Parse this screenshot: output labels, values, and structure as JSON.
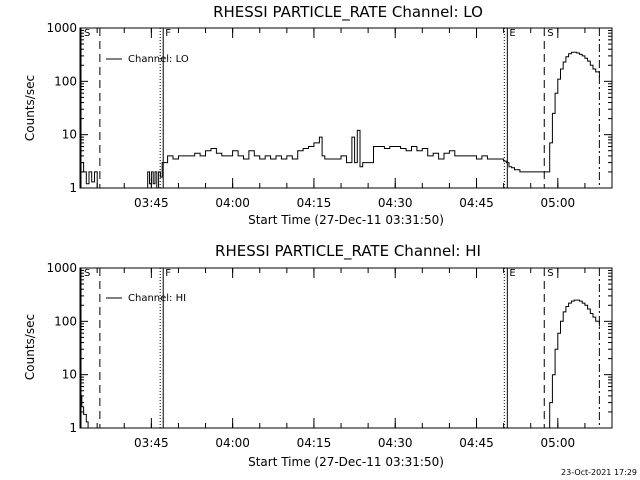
{
  "colors": {
    "background": "#ffffff",
    "ink": "#000000"
  },
  "footer_timestamp": "23-Oct-2021 17:29",
  "chart_data": [
    {
      "type": "line",
      "title": "RHESSI PARTICLE_RATE Channel: LO",
      "xlabel": "Start Time (27-Dec-11 03:31:50)",
      "ylabel": "Counts/sec",
      "y_scale": "log",
      "ylim": [
        1,
        1000
      ],
      "xlim": [
        "03:31:50",
        "05:10:00"
      ],
      "x_ticks": [
        "03:45",
        "04:00",
        "04:15",
        "04:30",
        "04:45",
        "05:00"
      ],
      "y_ticks": [
        "1",
        "10",
        "100",
        "1000"
      ],
      "legend": {
        "label": "Channel: LO",
        "position": "top-left"
      },
      "markers": [
        {
          "label": "S",
          "time": "03:31:50",
          "style": "solid"
        },
        {
          "label": "",
          "time": "03:35:30",
          "style": "dashed"
        },
        {
          "label": "F",
          "time": "03:47:00",
          "style": "dotted-solid"
        },
        {
          "label": "E",
          "time": "04:50:30",
          "style": "dotted-solid"
        },
        {
          "label": "S",
          "time": "04:57:30",
          "style": "dashed"
        },
        {
          "label": "",
          "time": "05:07:40",
          "style": "dash-dot"
        }
      ],
      "series": [
        {
          "x": [
            "03:31:50",
            "03:32:00",
            "03:32:30",
            "03:33:00",
            "03:33:30",
            "03:34:00",
            "03:34:30",
            "03:35:00",
            "03:35:30",
            "03:36:00",
            "03:44:00",
            "03:44:20",
            "03:44:40",
            "03:45:00",
            "03:45:20",
            "03:45:40",
            "03:46:00",
            "03:46:20",
            "03:46:40",
            "03:47:00",
            "03:47:30",
            "03:48:00",
            "03:49:00",
            "03:50:00",
            "03:51:00",
            "03:52:00",
            "03:53:00",
            "03:54:00",
            "03:55:00",
            "03:56:00",
            "03:57:00",
            "03:58:00",
            "03:59:00",
            "04:00:00",
            "04:01:00",
            "04:02:00",
            "04:03:00",
            "04:04:00",
            "04:05:00",
            "04:06:00",
            "04:07:00",
            "04:08:00",
            "04:09:00",
            "04:10:00",
            "04:11:00",
            "04:12:00",
            "04:13:00",
            "04:14:00",
            "04:15:00",
            "04:16:00",
            "04:16:30",
            "04:17:00",
            "04:18:00",
            "04:19:00",
            "04:20:00",
            "04:21:00",
            "04:22:00",
            "04:22:30",
            "04:23:00",
            "04:23:30",
            "04:24:00",
            "04:25:00",
            "04:26:00",
            "04:27:00",
            "04:28:00",
            "04:29:00",
            "04:30:00",
            "04:31:00",
            "04:32:00",
            "04:33:00",
            "04:34:00",
            "04:35:00",
            "04:36:00",
            "04:37:00",
            "04:38:00",
            "04:39:00",
            "04:40:00",
            "04:41:00",
            "04:42:00",
            "04:43:00",
            "04:44:00",
            "04:45:00",
            "04:46:00",
            "04:47:00",
            "04:48:00",
            "04:49:00",
            "04:50:00",
            "04:50:30",
            "04:51:00",
            "04:51:30",
            "04:52:00",
            "04:53:00",
            "04:54:00",
            "04:55:00",
            "04:56:00",
            "04:57:00",
            "04:57:30",
            "04:58:30",
            "04:59:00",
            "04:59:30",
            "05:00:00",
            "05:00:30",
            "05:01:00",
            "05:01:30",
            "05:02:00",
            "05:02:30",
            "05:03:00",
            "05:03:30",
            "05:04:00",
            "05:04:30",
            "05:05:00",
            "05:05:30",
            "05:06:00",
            "05:06:30",
            "05:07:00",
            "05:07:40"
          ],
          "y": [
            4,
            3,
            2,
            1.2,
            2,
            1.3,
            2,
            1,
            1,
            1,
            1,
            2,
            1.2,
            2,
            1.2,
            2,
            1,
            2,
            1.6,
            3,
            3,
            4,
            3.5,
            4,
            4,
            4,
            4.5,
            4,
            5,
            5.5,
            4.5,
            4,
            4,
            5,
            4,
            3.5,
            5,
            4,
            3.5,
            4,
            3.5,
            4,
            3.5,
            4,
            3.5,
            5,
            5.5,
            6,
            7,
            9,
            4,
            3.5,
            3.5,
            3.5,
            4,
            3,
            9,
            3,
            12,
            2.5,
            3,
            3,
            6,
            6,
            5.5,
            6,
            6,
            5.5,
            5,
            6,
            5,
            5.5,
            4,
            4.5,
            3.5,
            4.5,
            5,
            4,
            4,
            4,
            4,
            3.5,
            4,
            3.5,
            3.5,
            3.5,
            3.2,
            3,
            2.5,
            2.4,
            2.2,
            2,
            2,
            2,
            2,
            2,
            2,
            7,
            25,
            60,
            110,
            170,
            230,
            290,
            330,
            350,
            350,
            340,
            320,
            300,
            270,
            240,
            200,
            170,
            150,
            120
          ]
        }
      ]
    },
    {
      "type": "line",
      "title": "RHESSI PARTICLE_RATE Channel: HI",
      "xlabel": "Start Time (27-Dec-11 03:31:50)",
      "ylabel": "Counts/sec",
      "y_scale": "log",
      "ylim": [
        1,
        1000
      ],
      "xlim": [
        "03:31:50",
        "05:10:00"
      ],
      "x_ticks": [
        "03:45",
        "04:00",
        "04:15",
        "04:30",
        "04:45",
        "05:00"
      ],
      "y_ticks": [
        "1",
        "10",
        "100",
        "1000"
      ],
      "legend": {
        "label": "Channel: HI",
        "position": "top-left"
      },
      "markers": [
        {
          "label": "S",
          "time": "03:31:50",
          "style": "solid"
        },
        {
          "label": "",
          "time": "03:35:30",
          "style": "dashed"
        },
        {
          "label": "F",
          "time": "03:47:00",
          "style": "dotted-solid"
        },
        {
          "label": "E",
          "time": "04:50:30",
          "style": "dotted-solid"
        },
        {
          "label": "S",
          "time": "04:57:30",
          "style": "dashed"
        },
        {
          "label": "",
          "time": "05:07:40",
          "style": "dash-dot"
        }
      ],
      "series": [
        {
          "x": [
            "03:31:50",
            "03:32:10",
            "03:32:30",
            "03:33:00",
            "03:33:20",
            "04:57:30",
            "04:58:00",
            "04:58:30",
            "04:59:00",
            "04:59:30",
            "05:00:00",
            "05:00:30",
            "05:01:00",
            "05:01:30",
            "05:02:00",
            "05:02:30",
            "05:03:00",
            "05:03:30",
            "05:04:00",
            "05:04:30",
            "05:05:00",
            "05:05:30",
            "05:06:00",
            "05:06:30",
            "05:07:00",
            "05:07:40"
          ],
          "y": [
            4,
            2.5,
            1.8,
            1.3,
            1,
            1,
            1,
            3,
            10,
            30,
            60,
            100,
            150,
            190,
            220,
            240,
            250,
            250,
            240,
            220,
            200,
            170,
            140,
            120,
            100,
            80
          ]
        }
      ]
    }
  ]
}
